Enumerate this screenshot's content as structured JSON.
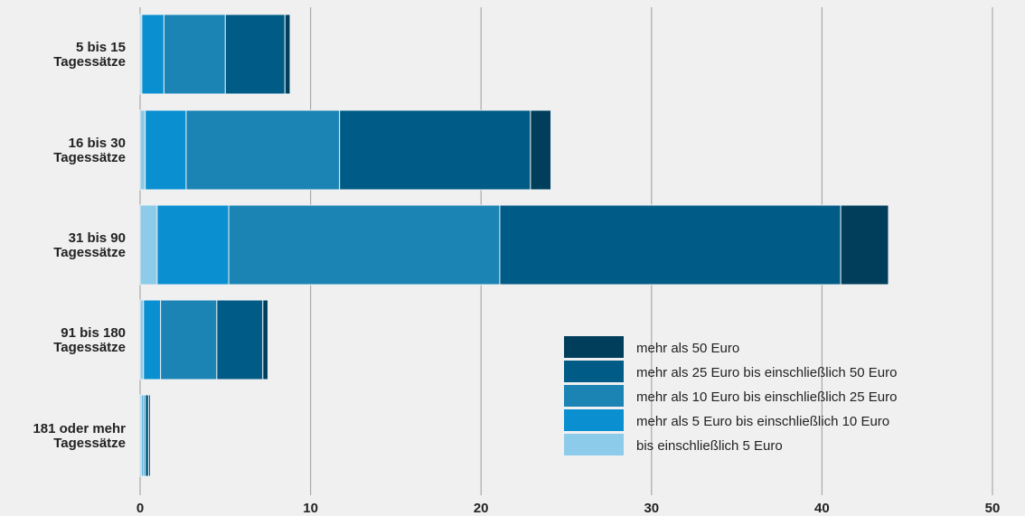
{
  "chart_data": {
    "type": "bar",
    "orientation": "horizontal",
    "stacked": true,
    "categories": [
      [
        "5 bis 15",
        "Tagessätze"
      ],
      [
        "16 bis 30",
        "Tagessätze"
      ],
      [
        "31 bis 90",
        "Tagessätze"
      ],
      [
        "91 bis 180",
        "Tagessätze"
      ],
      [
        "181 oder mehr",
        "Tagessätze"
      ]
    ],
    "series": [
      {
        "name": "bis einschließlich 5 Euro",
        "color": "#8ccbea",
        "values": [
          0.1,
          0.3,
          1.0,
          0.2,
          0.1
        ]
      },
      {
        "name": "mehr als 5 Euro bis einschließlich 10 Euro",
        "color": "#0a8fd1",
        "values": [
          1.3,
          2.4,
          4.2,
          1.0,
          0.1
        ]
      },
      {
        "name": "mehr als 10 Euro bis einschließlich 25 Euro",
        "color": "#1b84b4",
        "values": [
          3.6,
          9.0,
          15.9,
          3.3,
          0.1
        ]
      },
      {
        "name": "mehr als 25 Euro bis einschließlich 50 Euro",
        "color": "#005c86",
        "values": [
          3.5,
          11.2,
          20.0,
          2.7,
          0.2
        ]
      },
      {
        "name": "mehr als 50 Euro",
        "color": "#003e5c",
        "values": [
          0.3,
          1.2,
          2.8,
          0.3,
          0.1
        ]
      }
    ],
    "legend_order": [
      4,
      3,
      2,
      1,
      0
    ],
    "xlim": [
      0,
      50
    ],
    "xticks": [
      0,
      10,
      20,
      30,
      40,
      50
    ],
    "grid": "vertical",
    "legend_position": "bottom-right",
    "title": "",
    "xlabel": "",
    "ylabel": ""
  }
}
